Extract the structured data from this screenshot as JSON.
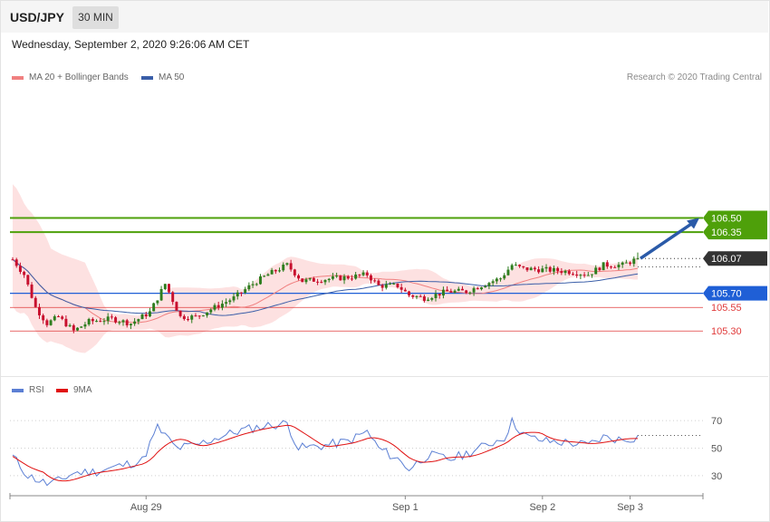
{
  "header": {
    "symbol": "USD/JPY",
    "timeframe": "30 MIN",
    "datetime": "Wednesday, September 2, 2020 9:26:06 AM CET"
  },
  "legend": {
    "ma20_label": "MA 20 + Bollinger Bands",
    "ma50_label": "MA 50",
    "copyright": "Research © 2020 Trading Central"
  },
  "rsi_legend": {
    "rsi_label": "RSI",
    "ma_label": "9MA"
  },
  "colors": {
    "bull": "#2e7d1e",
    "bear": "#c8102e",
    "resistance": "#4ea00a",
    "support_blue": "#1f5fd6",
    "support_red": "#e03a3a",
    "ma20": "#f08080",
    "bollinger_fill": "#fde1e1",
    "ma50": "#3a5ea8",
    "rsi": "#5b7fd4",
    "rsi_ma": "#e01010",
    "arrow": "#2a5aa8",
    "current_price": "#333333"
  },
  "chart_data": [
    {
      "type": "candlestick",
      "title": "USD/JPY 30 MIN",
      "x_tick_labels": [
        "Aug 29",
        "Sep 1",
        "Sep 2",
        "Sep 3"
      ],
      "y_range": [
        104.85,
        107.9
      ],
      "levels": [
        {
          "label": "106.50",
          "value": 106.5,
          "kind": "resistance"
        },
        {
          "label": "106.35",
          "value": 106.35,
          "kind": "resistance"
        },
        {
          "label": "106.07",
          "value": 106.07,
          "kind": "current"
        },
        {
          "label": "105.70",
          "value": 105.7,
          "kind": "support_blue"
        },
        {
          "label": "105.55",
          "value": 105.55,
          "kind": "support_red"
        },
        {
          "label": "105.30",
          "value": 105.3,
          "kind": "support_red"
        }
      ],
      "anchors": [
        {
          "i": 0,
          "price": 106.06
        },
        {
          "i": 3,
          "price": 105.9
        },
        {
          "i": 6,
          "price": 105.55
        },
        {
          "i": 9,
          "price": 105.38
        },
        {
          "i": 12,
          "price": 105.45
        },
        {
          "i": 16,
          "price": 105.3
        },
        {
          "i": 20,
          "price": 105.4
        },
        {
          "i": 26,
          "price": 105.43
        },
        {
          "i": 31,
          "price": 105.38
        },
        {
          "i": 36,
          "price": 105.5
        },
        {
          "i": 40,
          "price": 105.8
        },
        {
          "i": 44,
          "price": 105.45
        },
        {
          "i": 48,
          "price": 105.45
        },
        {
          "i": 53,
          "price": 105.55
        },
        {
          "i": 58,
          "price": 105.65
        },
        {
          "i": 63,
          "price": 105.8
        },
        {
          "i": 67,
          "price": 105.9
        },
        {
          "i": 72,
          "price": 106.0
        },
        {
          "i": 76,
          "price": 105.83
        },
        {
          "i": 82,
          "price": 105.85
        },
        {
          "i": 88,
          "price": 105.87
        },
        {
          "i": 93,
          "price": 105.9
        },
        {
          "i": 96,
          "price": 105.78
        },
        {
          "i": 101,
          "price": 105.78
        },
        {
          "i": 104,
          "price": 105.68
        },
        {
          "i": 108,
          "price": 105.65
        },
        {
          "i": 114,
          "price": 105.72
        },
        {
          "i": 119,
          "price": 105.72
        },
        {
          "i": 124,
          "price": 105.8
        },
        {
          "i": 128,
          "price": 105.86
        },
        {
          "i": 131,
          "price": 106.0
        },
        {
          "i": 134,
          "price": 105.96
        },
        {
          "i": 140,
          "price": 105.95
        },
        {
          "i": 146,
          "price": 105.93
        },
        {
          "i": 151,
          "price": 105.9
        },
        {
          "i": 155,
          "price": 106.0
        },
        {
          "i": 160,
          "price": 106.0
        },
        {
          "i": 164,
          "price": 106.07
        }
      ],
      "candle_count": 165,
      "annotation": {
        "type": "arrow",
        "from_price": 106.07,
        "to_price": 106.5
      }
    },
    {
      "type": "line",
      "title": "RSI",
      "y_ticks": [
        70,
        50,
        30
      ],
      "ylim": [
        20,
        78
      ],
      "rsi_anchors": [
        {
          "i": 0,
          "v": 44
        },
        {
          "i": 4,
          "v": 30
        },
        {
          "i": 9,
          "v": 24
        },
        {
          "i": 12,
          "v": 26
        },
        {
          "i": 16,
          "v": 32
        },
        {
          "i": 22,
          "v": 33
        },
        {
          "i": 28,
          "v": 37
        },
        {
          "i": 34,
          "v": 41
        },
        {
          "i": 38,
          "v": 65
        },
        {
          "i": 43,
          "v": 50
        },
        {
          "i": 48,
          "v": 52
        },
        {
          "i": 54,
          "v": 58
        },
        {
          "i": 60,
          "v": 63
        },
        {
          "i": 66,
          "v": 66
        },
        {
          "i": 72,
          "v": 68
        },
        {
          "i": 75,
          "v": 50
        },
        {
          "i": 82,
          "v": 52
        },
        {
          "i": 88,
          "v": 55
        },
        {
          "i": 93,
          "v": 62
        },
        {
          "i": 96,
          "v": 50
        },
        {
          "i": 101,
          "v": 42
        },
        {
          "i": 104,
          "v": 35
        },
        {
          "i": 109,
          "v": 45
        },
        {
          "i": 115,
          "v": 42
        },
        {
          "i": 120,
          "v": 47
        },
        {
          "i": 125,
          "v": 53
        },
        {
          "i": 129,
          "v": 58
        },
        {
          "i": 131,
          "v": 69
        },
        {
          "i": 135,
          "v": 58
        },
        {
          "i": 140,
          "v": 55
        },
        {
          "i": 146,
          "v": 54
        },
        {
          "i": 151,
          "v": 52
        },
        {
          "i": 155,
          "v": 58
        },
        {
          "i": 160,
          "v": 56
        },
        {
          "i": 164,
          "v": 58
        }
      ]
    }
  ]
}
